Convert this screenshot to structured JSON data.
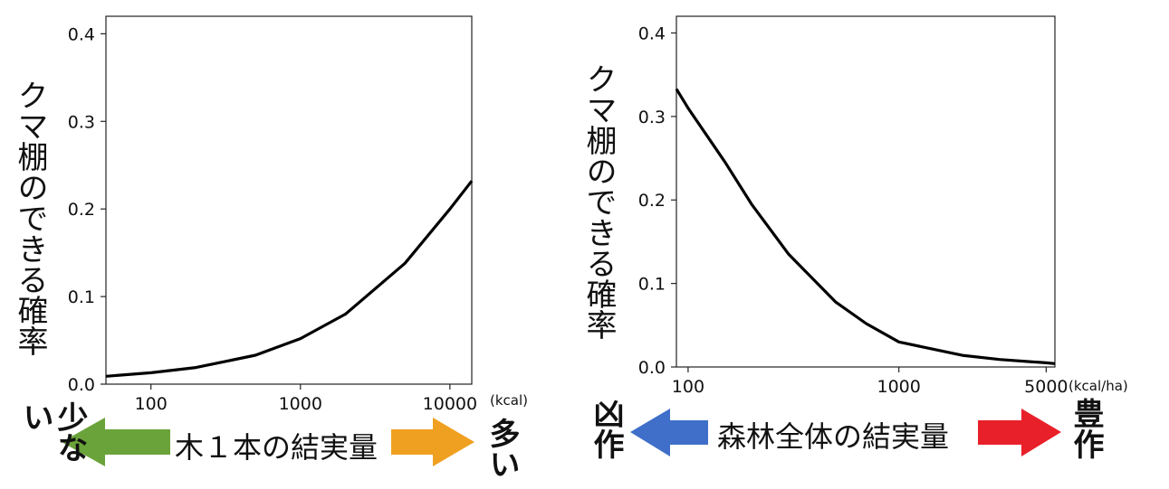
{
  "charts": [
    {
      "ylabel": "クマ棚のできる確率",
      "unit": "(kcal)",
      "caption": "木１本の結実量",
      "left_word": "少ない",
      "right_word": "多い",
      "left_arrow_color": "#6aa33a",
      "right_arrow_color": "#f0a020"
    },
    {
      "ylabel": "クマ棚のできる確率",
      "unit": "(kcal/ha)",
      "caption": "森林全体の結実量",
      "left_word": "凶作",
      "right_word": "豊作",
      "left_arrow_color": "#3f6fc8",
      "right_arrow_color": "#e8202a"
    }
  ],
  "chart_data": [
    {
      "type": "line",
      "xscale": "log",
      "x_ticks": [
        100,
        1000,
        10000
      ],
      "y_ticks": [
        0.0,
        0.1,
        0.2,
        0.3,
        0.4
      ],
      "xlim": [
        50,
        14000
      ],
      "ylim": [
        0,
        0.42
      ],
      "series": [
        {
          "x": [
            50,
            100,
            200,
            500,
            1000,
            2000,
            5000,
            10000,
            14000
          ],
          "y": [
            0.009,
            0.013,
            0.019,
            0.033,
            0.052,
            0.08,
            0.138,
            0.2,
            0.232
          ]
        }
      ],
      "line_color": "#000000",
      "grid": false
    },
    {
      "type": "line",
      "xscale": "log",
      "x_ticks": [
        100,
        1000,
        5000
      ],
      "y_ticks": [
        0.0,
        0.1,
        0.2,
        0.3,
        0.4
      ],
      "xlim": [
        88,
        5500
      ],
      "ylim": [
        0,
        0.42
      ],
      "series": [
        {
          "x": [
            88,
            100,
            150,
            200,
            300,
            500,
            700,
            1000,
            2000,
            3000,
            5000,
            5500
          ],
          "y": [
            0.333,
            0.31,
            0.245,
            0.195,
            0.135,
            0.078,
            0.052,
            0.03,
            0.014,
            0.009,
            0.005,
            0.004
          ]
        }
      ],
      "line_color": "#000000",
      "grid": false
    }
  ]
}
